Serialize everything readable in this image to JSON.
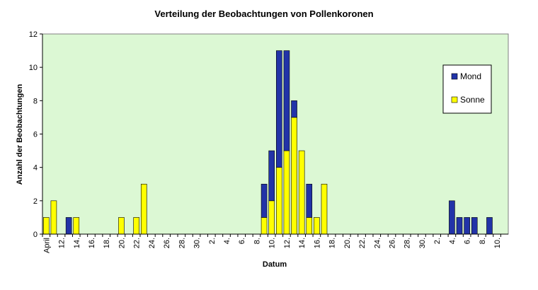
{
  "chart_data": {
    "type": "stacked_bar",
    "title": "Verteilung der Beobachtungen von Pollenkoronen",
    "x_label": "Datum",
    "y_label": "Anzahl der Beobachtungen",
    "categories": [
      "April",
      null,
      "12.",
      null,
      "14.",
      null,
      "16.",
      null,
      "18.",
      null,
      "20.",
      null,
      "22.",
      null,
      "24.",
      null,
      "26.",
      null,
      "28.",
      null,
      "30.",
      null,
      "2.",
      null,
      "4.",
      null,
      "6.",
      null,
      "8.",
      null,
      "10.",
      null,
      "12.",
      null,
      "14.",
      null,
      "16.",
      null,
      "18.",
      null,
      "20.",
      null,
      "22.",
      null,
      "24.",
      null,
      "26.",
      null,
      "28.",
      null,
      "30.",
      null,
      "2.",
      null,
      "4.",
      null,
      "6.",
      null,
      "8.",
      null,
      "10.",
      null
    ],
    "series": [
      {
        "name": "Sonne",
        "color": "#ffff00",
        "values": [
          1,
          2,
          0,
          0,
          1,
          0,
          0,
          0,
          0,
          0,
          1,
          0,
          1,
          3,
          0,
          0,
          0,
          0,
          0,
          0,
          0,
          0,
          0,
          0,
          0,
          0,
          0,
          0,
          0,
          1,
          2,
          4,
          5,
          7,
          5,
          1,
          1,
          3,
          0,
          0,
          0,
          0,
          0,
          0,
          0,
          0,
          0,
          0,
          0,
          0,
          0,
          0,
          0,
          0,
          0,
          0,
          0,
          0,
          0,
          0,
          0,
          0
        ]
      },
      {
        "name": "Mond",
        "color": "#2233a8",
        "values": [
          0,
          0,
          0,
          1,
          0,
          0,
          0,
          0,
          0,
          0,
          0,
          0,
          0,
          0,
          0,
          0,
          0,
          0,
          0,
          0,
          0,
          0,
          0,
          0,
          0,
          0,
          0,
          0,
          0,
          2,
          3,
          7,
          6,
          1,
          0,
          2,
          0,
          0,
          0,
          0,
          0,
          0,
          0,
          0,
          0,
          0,
          0,
          0,
          0,
          0,
          0,
          0,
          0,
          0,
          2,
          1,
          1,
          1,
          0,
          1,
          0,
          0
        ]
      }
    ],
    "ylim": [
      0,
      12
    ],
    "yticks": [
      0,
      2,
      4,
      6,
      8,
      10,
      12
    ],
    "plot_background": "#dcf8d4",
    "legend": "right"
  }
}
